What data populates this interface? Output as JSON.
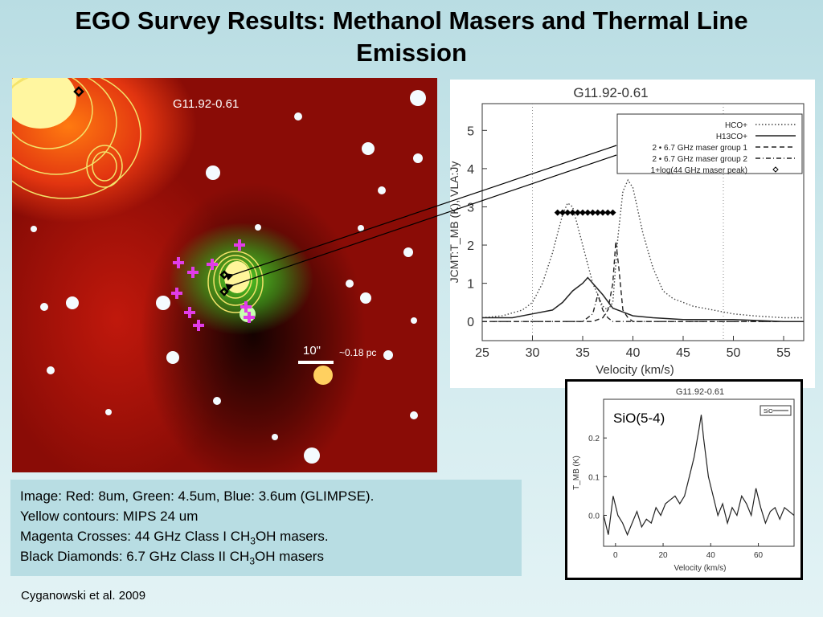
{
  "slide": {
    "title_line1": "EGO Survey Results: Methanol Masers and Thermal Line",
    "title_line2": "Emission",
    "credit": "Cyganowski et al. 2009"
  },
  "image": {
    "source_label": "G11.92-0.61",
    "scale_angular": "10\"",
    "scale_physical": "~0.18 pc"
  },
  "caption": {
    "line1": "Image: Red: 8um, Green: 4.5um, Blue: 3.6um (GLIMPSE).",
    "line2": "Yellow contours: MIPS 24 um",
    "line3_pre": "Magenta Crosses: 44 GHz Class I CH",
    "line3_sub": "3",
    "line3_post": "OH masers.",
    "line4_pre": "Black Diamonds: 6.7 GHz Class II CH",
    "line4_sub": "3",
    "line4_post": "OH masers"
  },
  "chart_data": [
    {
      "type": "line",
      "title": "G11.92-0.61",
      "xlabel": "Velocity (km/s)",
      "ylabel": "JCMT:T_MB (K), VLA:Jy",
      "xlim": [
        25,
        57
      ],
      "ylim": [
        -0.5,
        5.7
      ],
      "x_ticks": [
        "25",
        "30",
        "35",
        "40",
        "45",
        "50",
        "55"
      ],
      "y_ticks": [
        "0",
        "1",
        "2",
        "3",
        "4",
        "5"
      ],
      "legend": [
        "HCO+",
        "H13CO+",
        "2 • 6.7 GHz maser group 1",
        "2 • 6.7 GHz maser group 2",
        "1+log(44 GHz maser peak)"
      ],
      "legend_position": "top-right",
      "series": [
        {
          "name": "HCO+",
          "x": [
            25,
            27,
            29,
            30,
            31,
            32,
            33,
            33.5,
            34,
            35,
            36,
            37,
            37.5,
            38,
            38.5,
            39,
            39.5,
            40,
            41,
            42,
            43,
            44,
            45,
            46,
            48,
            50,
            52,
            55,
            57
          ],
          "y": [
            0.1,
            0.15,
            0.3,
            0.5,
            1.0,
            1.8,
            2.8,
            3.1,
            3.0,
            2.0,
            1.0,
            0.4,
            0.3,
            0.5,
            2.2,
            3.4,
            3.7,
            3.5,
            2.3,
            1.4,
            0.8,
            0.6,
            0.5,
            0.4,
            0.3,
            0.2,
            0.15,
            0.1,
            0.1
          ]
        },
        {
          "name": "H13CO+",
          "x": [
            25,
            28,
            30,
            32,
            33,
            34,
            35,
            35.5,
            36,
            37,
            38,
            39,
            40,
            42,
            45,
            50,
            55,
            57
          ],
          "y": [
            0.1,
            0.1,
            0.2,
            0.3,
            0.5,
            0.8,
            1.0,
            1.15,
            1.0,
            0.7,
            0.35,
            0.25,
            0.15,
            0.1,
            0.05,
            0.05,
            0.0,
            0.0
          ]
        },
        {
          "name": "2 • 6.7 GHz maser group 1",
          "x": [
            25,
            30,
            36,
            37,
            37.5,
            38,
            38.3,
            38.6,
            39,
            39.5,
            40,
            45,
            50,
            57
          ],
          "y": [
            0.0,
            0.0,
            0.0,
            0.1,
            0.3,
            1.0,
            2.1,
            1.4,
            0.3,
            0.1,
            0.0,
            0.0,
            0.0,
            0.0
          ]
        },
        {
          "name": "2 • 6.7 GHz maser group 2",
          "x": [
            25,
            30,
            35,
            36,
            36.5,
            37,
            37.5,
            38,
            40,
            45,
            50,
            57
          ],
          "y": [
            0.0,
            0.0,
            0.0,
            0.2,
            0.7,
            0.3,
            0.1,
            0.0,
            0.0,
            0.0,
            0.0,
            0.0
          ]
        },
        {
          "name": "1+log(44 GHz maser peak)",
          "x": [
            32.5,
            33,
            33.5,
            34,
            34.5,
            35,
            35.5,
            36,
            36.5,
            37,
            37.5,
            38
          ],
          "y": [
            2.85,
            2.85,
            2.85,
            2.85,
            2.85,
            2.85,
            2.85,
            2.85,
            2.85,
            2.85,
            2.85,
            2.85
          ]
        }
      ]
    },
    {
      "type": "line",
      "title": "G11.92-0.61",
      "annotation": "SiO(5-4)",
      "xlabel": "Velocity (km/s)",
      "ylabel": "T_MB (K)",
      "xlim": [
        -5,
        75
      ],
      "ylim": [
        -0.08,
        0.3
      ],
      "x_ticks": [
        "0",
        "20",
        "40",
        "60"
      ],
      "y_ticks": [
        "0.0",
        "0.1",
        "0.2"
      ],
      "legend": [
        "SiO"
      ],
      "legend_position": "top-right",
      "series": [
        {
          "name": "SiO",
          "x": [
            -5,
            -3,
            -1,
            1,
            3,
            5,
            7,
            9,
            11,
            13,
            15,
            17,
            19,
            21,
            23,
            25,
            27,
            29,
            31,
            33,
            35,
            36,
            37,
            39,
            41,
            43,
            45,
            47,
            49,
            51,
            53,
            55,
            57,
            59,
            61,
            63,
            65,
            67,
            69,
            71,
            73,
            75
          ],
          "y": [
            0.0,
            -0.05,
            0.05,
            0.0,
            -0.02,
            -0.05,
            -0.02,
            0.01,
            -0.03,
            -0.01,
            -0.02,
            0.02,
            0.0,
            0.03,
            0.04,
            0.05,
            0.03,
            0.05,
            0.1,
            0.15,
            0.22,
            0.26,
            0.2,
            0.1,
            0.05,
            0.0,
            0.03,
            -0.02,
            0.02,
            0.0,
            0.05,
            0.03,
            0.0,
            0.07,
            0.02,
            -0.02,
            0.01,
            0.02,
            -0.01,
            0.02,
            0.01,
            0.0
          ]
        }
      ]
    }
  ]
}
